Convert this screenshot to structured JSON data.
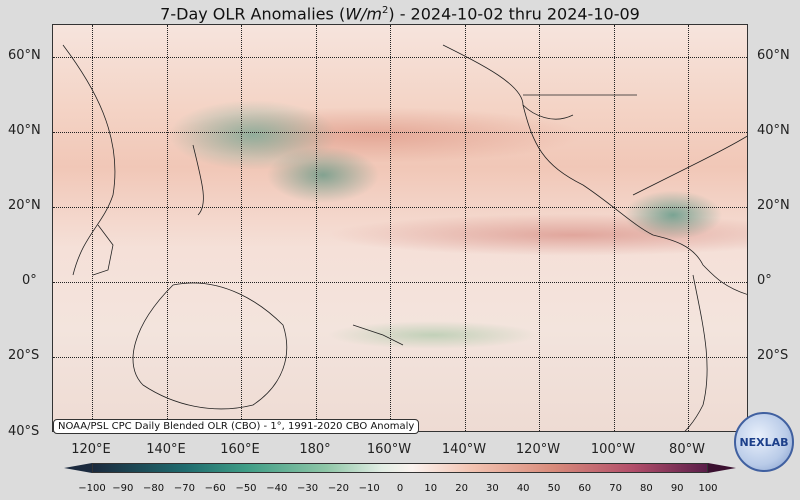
{
  "title": {
    "prefix": "7-Day OLR Anomalies (",
    "unit_base": "W/m",
    "unit_exp": "2",
    "suffix": ") - 2024-10-02 thru 2024-10-09"
  },
  "map": {
    "lat_labels_left": [
      "60°N",
      "40°N",
      "20°N",
      "0°",
      "20°S",
      "40°S"
    ],
    "lat_labels_right": [
      "60°N",
      "40°N",
      "20°N",
      "0°",
      "20°S"
    ],
    "lon_labels": [
      "120°E",
      "140°E",
      "160°E",
      "180°",
      "160°W",
      "140°W",
      "120°W",
      "100°W",
      "80°W"
    ],
    "data_note": "NOAA/PSL CPC Daily Blended OLR (CBO) - 1°, 1991-2020 CBO Anomaly"
  },
  "colorbar": {
    "ticks": [
      "−100",
      "−90",
      "−80",
      "−70",
      "−60",
      "−50",
      "−40",
      "−30",
      "−20",
      "−10",
      "0",
      "10",
      "20",
      "30",
      "40",
      "50",
      "60",
      "70",
      "80",
      "90",
      "100"
    ],
    "colors": {
      "low": "#1b2a3e",
      "mid": "#fbf3ef",
      "high": "#5a1e4a"
    }
  },
  "logo": {
    "text": "NEXLAB"
  }
}
